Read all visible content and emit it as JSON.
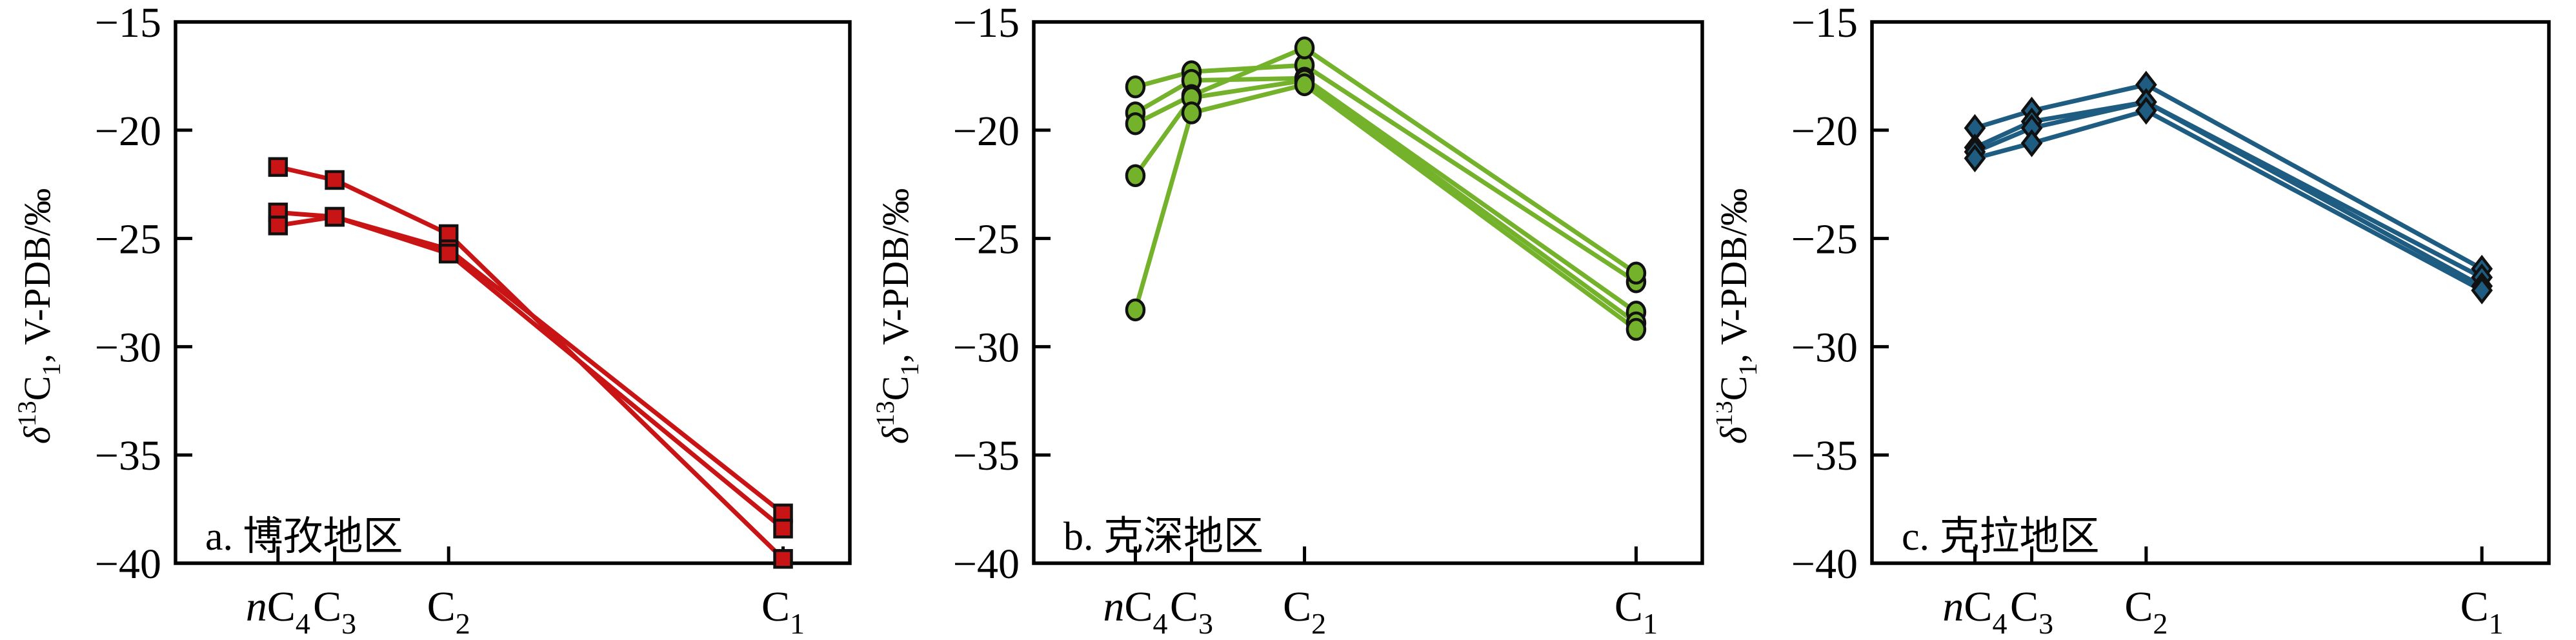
{
  "figure": {
    "ylabel_text": "δ13C1, V-PDB/‰",
    "ylabel_parts": {
      "delta": "δ",
      "sup": "13",
      "base": "C",
      "sub": "1",
      "rest": ", V-PDB/‰"
    },
    "ytick_labels": [
      "−15",
      "−20",
      "−25",
      "−30",
      "−35",
      "−40"
    ],
    "ytick_values": [
      -15,
      -20,
      -25,
      -30,
      -35,
      -40
    ],
    "category_parts": [
      {
        "italic": "n",
        "base": "C",
        "sub": "4"
      },
      {
        "italic": "",
        "base": "C",
        "sub": "3"
      },
      {
        "italic": "",
        "base": "C",
        "sub": "2"
      },
      {
        "italic": "",
        "base": "C",
        "sub": "1"
      }
    ]
  },
  "chart_data": [
    {
      "type": "line",
      "panel_label": "a. 博孜地区",
      "marker": "square",
      "color": "#c81414",
      "edge_color": "#111111",
      "categories": [
        "nC4",
        "C3",
        "C2",
        "C1"
      ],
      "ylabel": "δ13C1, V-PDB/‰",
      "ylim": [
        -40,
        -15
      ],
      "grid": false,
      "series": [
        [
          -21.7,
          -22.3,
          -24.8,
          -39.8
        ],
        [
          -23.8,
          -24.0,
          -25.5,
          -37.7
        ],
        [
          -24.4,
          -24.0,
          -25.7,
          -38.4
        ]
      ]
    },
    {
      "type": "line",
      "panel_label": "b. 克深地区",
      "marker": "circle",
      "color": "#74b22c",
      "edge_color": "#111111",
      "categories": [
        "nC4",
        "C3",
        "C2",
        "C1"
      ],
      "ylabel": "δ13C1, V-PDB/‰",
      "ylim": [
        -40,
        -15
      ],
      "grid": false,
      "series": [
        [
          -18.0,
          -17.3,
          -17.0,
          -27.0
        ],
        [
          -19.2,
          -17.7,
          -17.6,
          -28.4
        ],
        [
          -19.7,
          -18.4,
          -16.2,
          -26.6
        ],
        [
          -22.1,
          -18.5,
          -17.7,
          -28.9
        ],
        [
          -28.3,
          -19.2,
          -17.9,
          -29.2
        ]
      ]
    },
    {
      "type": "line",
      "panel_label": "c. 克拉地区",
      "marker": "diamond",
      "color": "#1e5c82",
      "edge_color": "#111111",
      "categories": [
        "nC4",
        "C3",
        "C2",
        "C1"
      ],
      "ylabel": "δ13C1, V-PDB/‰",
      "ylim": [
        -40,
        -15
      ],
      "grid": false,
      "series": [
        [
          -19.9,
          -19.1,
          -17.9,
          -26.4
        ],
        [
          -20.8,
          -19.6,
          -18.7,
          -26.8
        ],
        [
          -21.0,
          -19.9,
          -18.7,
          -27.2
        ],
        [
          -21.3,
          -20.6,
          -19.1,
          -27.4
        ]
      ]
    }
  ]
}
